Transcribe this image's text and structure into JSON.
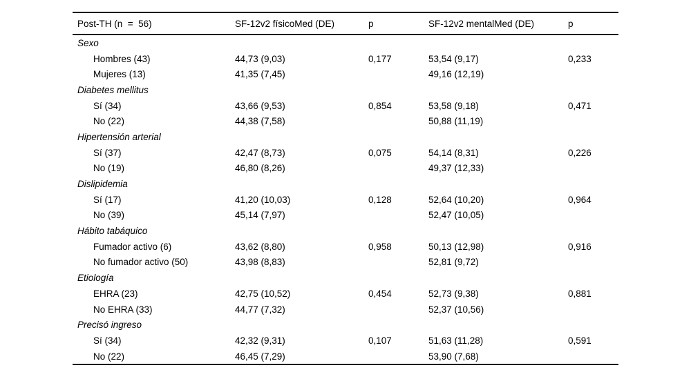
{
  "table": {
    "columns": [
      "Post-TH (n  =  56)",
      "SF-12v2 físicoMed (DE)",
      "p",
      "SF-12v2 mentalMed (DE)",
      "p"
    ],
    "groups": [
      {
        "label": "Sexo",
        "rows": [
          {
            "label": "Hombres (43)",
            "fisico": "44,73 (9,03)",
            "p_fisico": "0,177",
            "mental": "53,54 (9,17)",
            "p_mental": "0,233"
          },
          {
            "label": "Mujeres (13)",
            "fisico": "41,35 (7,45)",
            "p_fisico": "",
            "mental": "49,16 (12,19)",
            "p_mental": ""
          }
        ]
      },
      {
        "label": "Diabetes mellitus",
        "rows": [
          {
            "label": "Sí (34)",
            "fisico": "43,66 (9,53)",
            "p_fisico": "0,854",
            "mental": "53,58 (9,18)",
            "p_mental": "0,471"
          },
          {
            "label": "No (22)",
            "fisico": "44,38 (7,58)",
            "p_fisico": "",
            "mental": "50,88 (11,19)",
            "p_mental": ""
          }
        ]
      },
      {
        "label": "Hipertensión arterial",
        "rows": [
          {
            "label": "Sí (37)",
            "fisico": "42,47 (8,73)",
            "p_fisico": "0,075",
            "mental": "54,14 (8,31)",
            "p_mental": "0,226"
          },
          {
            "label": "No (19)",
            "fisico": "46,80 (8,26)",
            "p_fisico": "",
            "mental": "49,37 (12,33)",
            "p_mental": ""
          }
        ]
      },
      {
        "label": "Dislipidemia",
        "rows": [
          {
            "label": "Sí (17)",
            "fisico": "41,20 (10,03)",
            "p_fisico": "0,128",
            "mental": "52,64 (10,20)",
            "p_mental": "0,964"
          },
          {
            "label": "No (39)",
            "fisico": "45,14 (7,97)",
            "p_fisico": "",
            "mental": "52,47 (10,05)",
            "p_mental": ""
          }
        ]
      },
      {
        "label": "Hábito tabáquico",
        "rows": [
          {
            "label": "Fumador activo (6)",
            "fisico": "43,62 (8,80)",
            "p_fisico": "0,958",
            "mental": "50,13 (12,98)",
            "p_mental": "0,916"
          },
          {
            "label": "No fumador activo (50)",
            "fisico": "43,98 (8,83)",
            "p_fisico": "",
            "mental": "52,81 (9,72)",
            "p_mental": ""
          }
        ]
      },
      {
        "label": "Etiología",
        "rows": [
          {
            "label": "EHRA (23)",
            "fisico": "42,75 (10,52)",
            "p_fisico": "0,454",
            "mental": "52,73 (9,38)",
            "p_mental": "0,881"
          },
          {
            "label": "No EHRA (33)",
            "fisico": "44,77 (7,32)",
            "p_fisico": "",
            "mental": "52,37 (10,56)",
            "p_mental": ""
          }
        ]
      },
      {
        "label": "Precisó ingreso",
        "rows": [
          {
            "label": "Sí (34)",
            "fisico": "42,32 (9,31)",
            "p_fisico": "0,107",
            "mental": "51,63 (11,28)",
            "p_mental": "0,591"
          },
          {
            "label": "No (22)",
            "fisico": "46,45 (7,29)",
            "p_fisico": "",
            "mental": "53,90 (7,68)",
            "p_mental": ""
          }
        ]
      }
    ]
  }
}
